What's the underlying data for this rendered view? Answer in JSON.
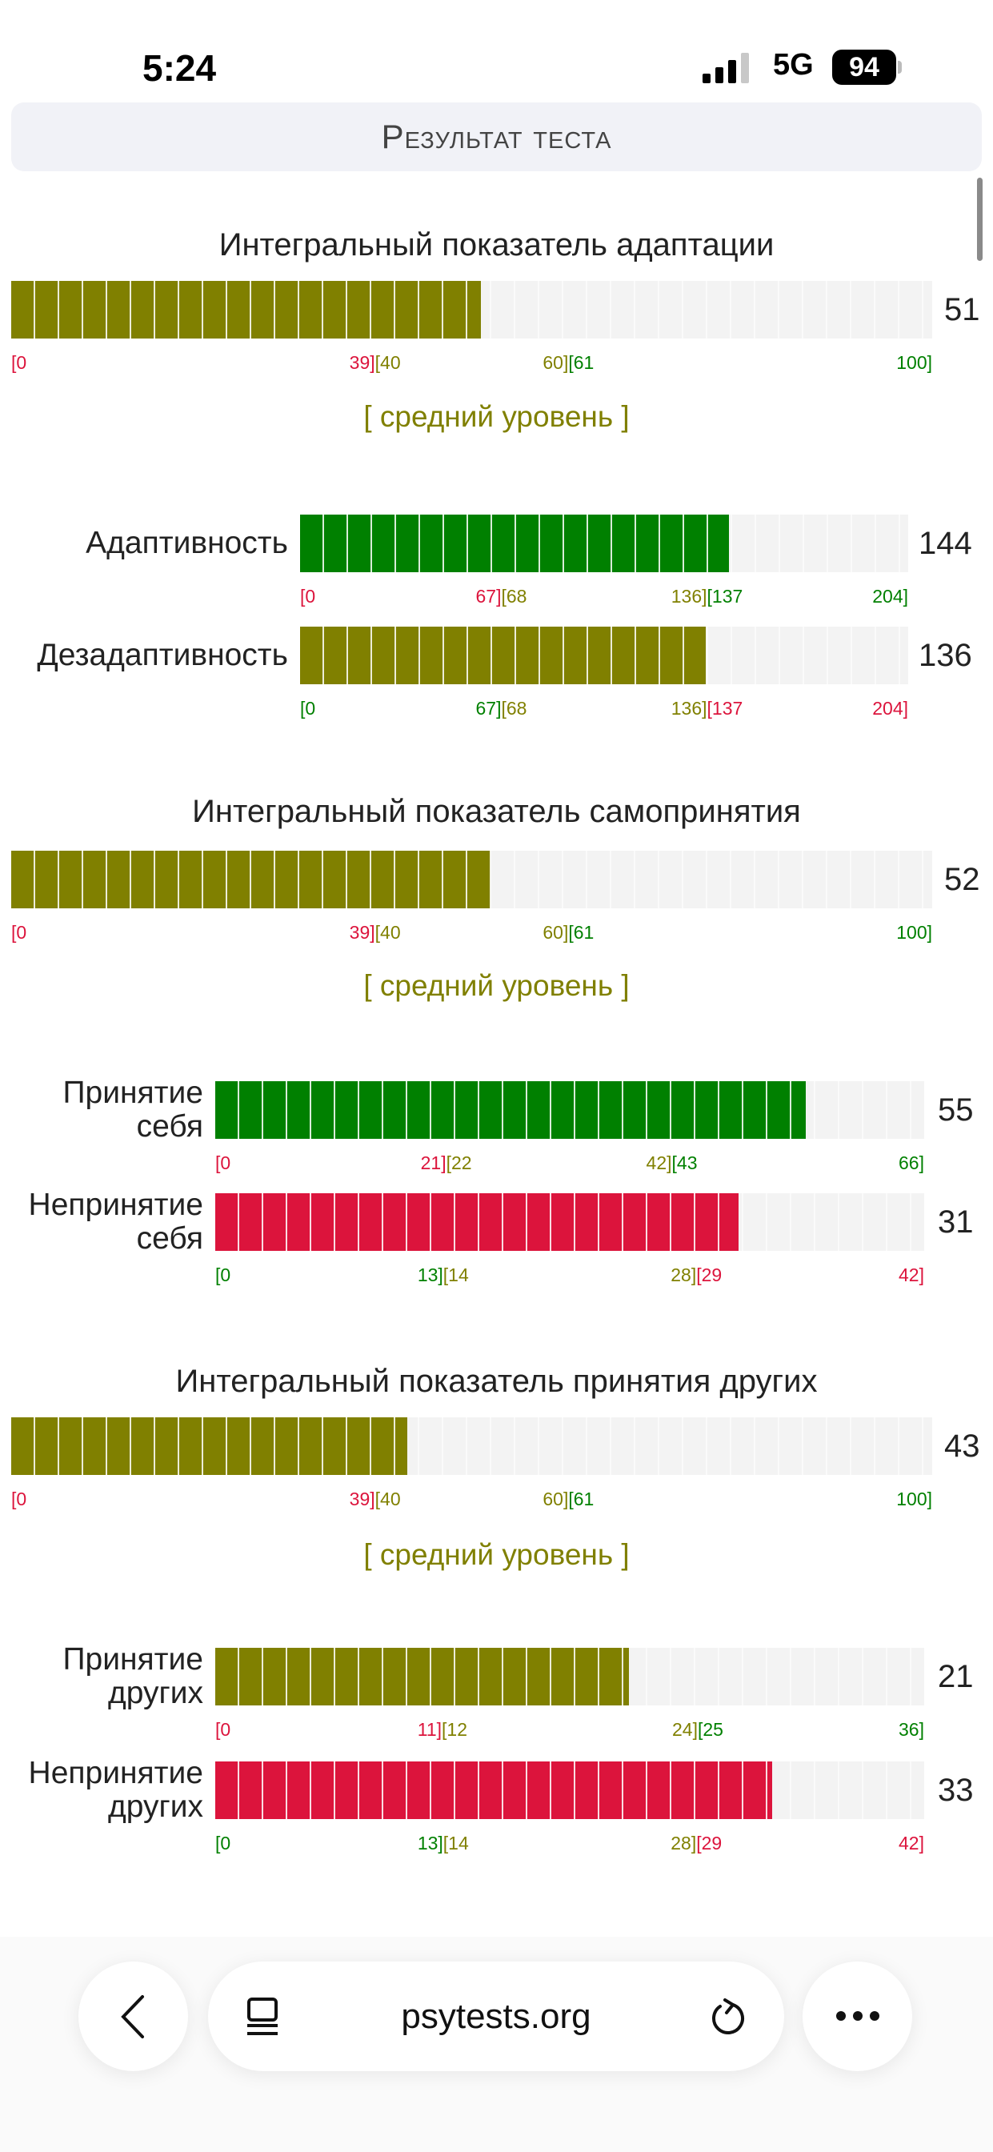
{
  "status_bar": {
    "time": "5:24",
    "network": "5G",
    "battery": "94"
  },
  "header": {
    "title": "Результат теста"
  },
  "colors": {
    "red": "#dc143c",
    "olive": "#808000",
    "green": "#008000",
    "empty": "#f3f3f3"
  },
  "titles": [
    "Интегральный показатель адаптации",
    "Интегральный показатель самопринятия",
    "Интегральный показатель принятия других"
  ],
  "levels": [
    "[ средний уровень ]",
    "[ средний уровень ]",
    "[ средний уровень ]"
  ],
  "bars": [
    {
      "label": "",
      "value": "51",
      "num": 51,
      "max": 100,
      "fill": "olive",
      "split": [
        39.5,
        60.5
      ],
      "range_colors": [
        "red",
        "olive",
        "green"
      ],
      "ticks": [
        "[0",
        "39]",
        "[40",
        "60]",
        "[61",
        "100]"
      ]
    },
    {
      "label": "Адаптивность",
      "value": "144",
      "num": 144,
      "max": 204,
      "fill": "green",
      "split": [
        67.5,
        136.5
      ],
      "range_colors": [
        "red",
        "olive",
        "green"
      ],
      "ticks": [
        "[0",
        "67]",
        "[68",
        "136]",
        "[137",
        "204]"
      ]
    },
    {
      "label": "Дезадаптивность",
      "value": "136",
      "num": 136,
      "max": 204,
      "fill": "olive",
      "split": [
        67.5,
        136.5
      ],
      "range_colors": [
        "green",
        "olive",
        "red"
      ],
      "ticks": [
        "[0",
        "67]",
        "[68",
        "136]",
        "[137",
        "204]"
      ]
    },
    {
      "label": "",
      "value": "52",
      "num": 52,
      "max": 100,
      "fill": "olive",
      "split": [
        39.5,
        60.5
      ],
      "range_colors": [
        "red",
        "olive",
        "green"
      ],
      "ticks": [
        "[0",
        "39]",
        "[40",
        "60]",
        "[61",
        "100]"
      ]
    },
    {
      "label": "Принятие себя",
      "label_lines": [
        "Принятие",
        "себя"
      ],
      "value": "55",
      "num": 55,
      "max": 66,
      "fill": "green",
      "split": [
        21.5,
        42.5
      ],
      "range_colors": [
        "red",
        "olive",
        "green"
      ],
      "ticks": [
        "[0",
        "21]",
        "[22",
        "42]",
        "[43",
        "66]"
      ]
    },
    {
      "label": "Непринятие себя",
      "label_lines": [
        "Непринятие",
        "себя"
      ],
      "value": "31",
      "num": 31,
      "max": 42,
      "fill": "red",
      "split": [
        13.5,
        28.5
      ],
      "range_colors": [
        "green",
        "olive",
        "red"
      ],
      "ticks": [
        "[0",
        "13]",
        "[14",
        "28]",
        "[29",
        "42]"
      ]
    },
    {
      "label": "",
      "value": "43",
      "num": 43,
      "max": 100,
      "fill": "olive",
      "split": [
        39.5,
        60.5
      ],
      "range_colors": [
        "red",
        "olive",
        "green"
      ],
      "ticks": [
        "[0",
        "39]",
        "[40",
        "60]",
        "[61",
        "100]"
      ]
    },
    {
      "label": "Принятие других",
      "label_lines": [
        "Принятие",
        "других"
      ],
      "value": "21",
      "num": 21,
      "max": 36,
      "fill": "olive",
      "split": [
        11.5,
        24.5
      ],
      "range_colors": [
        "red",
        "olive",
        "green"
      ],
      "ticks": [
        "[0",
        "11]",
        "[12",
        "24]",
        "[25",
        "36]"
      ]
    },
    {
      "label": "Непринятие других",
      "label_lines": [
        "Непринятие",
        "других"
      ],
      "value": "33",
      "num": 33,
      "max": 42,
      "fill": "red",
      "split": [
        13.5,
        28.5
      ],
      "range_colors": [
        "green",
        "olive",
        "red"
      ],
      "ticks": [
        "[0",
        "13]",
        "[14",
        "28]",
        "[29",
        "42]"
      ]
    }
  ],
  "browser": {
    "url": "psytests.org"
  }
}
